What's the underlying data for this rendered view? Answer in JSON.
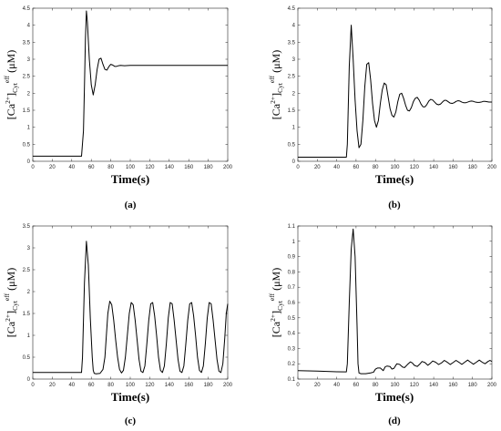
{
  "chart_data": [
    {
      "panel": "a",
      "type": "line",
      "caption": "(a)",
      "xlabel": "Time(s)",
      "ylabel": {
        "base": "[Ca",
        "sup": "2+",
        "bracket": "]",
        "sub": "Cyt",
        "sup2": "eff",
        "unit": "(μM)"
      },
      "xlim": [
        0,
        200
      ],
      "ylim": [
        0,
        4.5
      ],
      "xticks": [
        0,
        20,
        40,
        60,
        80,
        100,
        120,
        140,
        160,
        180,
        200
      ],
      "yticks": [
        0,
        0.5,
        1,
        1.5,
        2,
        2.5,
        3,
        3.5,
        4,
        4.5
      ],
      "x": [
        0,
        50,
        52,
        53,
        54,
        55,
        56,
        58,
        60,
        62,
        64,
        66,
        68,
        70,
        72,
        74,
        76,
        78,
        80,
        82,
        84,
        86,
        88,
        90,
        94,
        100,
        110,
        140,
        170,
        200
      ],
      "y": [
        0.15,
        0.15,
        0.9,
        2.2,
        3.6,
        4.42,
        4.1,
        3.0,
        2.25,
        1.95,
        2.25,
        2.7,
        3.0,
        3.03,
        2.85,
        2.7,
        2.68,
        2.78,
        2.85,
        2.83,
        2.79,
        2.79,
        2.81,
        2.82,
        2.81,
        2.82,
        2.82,
        2.82,
        2.82,
        2.82
      ]
    },
    {
      "panel": "b",
      "type": "line",
      "caption": "(b)",
      "xlabel": "Time(s)",
      "ylabel": {
        "base": "[Ca",
        "sup": "2+",
        "bracket": "]",
        "sub": "Cyt",
        "sup2": "eff",
        "unit": "(μM)"
      },
      "xlim": [
        0,
        200
      ],
      "ylim": [
        0,
        4.5
      ],
      "xticks": [
        0,
        20,
        40,
        60,
        80,
        100,
        120,
        140,
        160,
        180,
        200
      ],
      "yticks": [
        0,
        0.5,
        1,
        1.5,
        2,
        2.5,
        3,
        3.5,
        4,
        4.5
      ],
      "x": [
        0,
        50,
        51,
        53,
        55,
        57,
        59,
        61,
        63,
        65,
        67,
        69,
        71,
        73,
        75,
        77,
        79,
        81,
        83,
        85,
        87,
        89,
        91,
        93,
        95,
        97,
        99,
        101,
        103,
        105,
        107,
        109,
        111,
        113,
        115,
        117,
        119,
        121,
        123,
        125,
        127,
        129,
        131,
        133,
        135,
        137,
        139,
        141,
        143,
        145,
        147,
        149,
        151,
        153,
        155,
        157,
        159,
        161,
        163,
        165,
        167,
        169,
        171,
        173,
        175,
        177,
        179,
        181,
        183,
        185,
        187,
        189,
        191,
        193,
        195,
        197,
        200
      ],
      "y": [
        0.12,
        0.12,
        0.5,
        2.8,
        4.0,
        3.0,
        1.8,
        0.9,
        0.4,
        0.5,
        1.2,
        2.2,
        2.85,
        2.9,
        2.4,
        1.7,
        1.2,
        1.0,
        1.2,
        1.7,
        2.1,
        2.3,
        2.25,
        1.9,
        1.55,
        1.35,
        1.3,
        1.45,
        1.75,
        1.97,
        2.0,
        1.85,
        1.65,
        1.5,
        1.48,
        1.58,
        1.75,
        1.85,
        1.88,
        1.8,
        1.68,
        1.6,
        1.6,
        1.67,
        1.77,
        1.82,
        1.8,
        1.74,
        1.68,
        1.66,
        1.68,
        1.74,
        1.79,
        1.79,
        1.75,
        1.71,
        1.7,
        1.72,
        1.76,
        1.78,
        1.77,
        1.74,
        1.72,
        1.72,
        1.74,
        1.76,
        1.77,
        1.76,
        1.74,
        1.73,
        1.73,
        1.74,
        1.76,
        1.76,
        1.75,
        1.74,
        1.74
      ]
    },
    {
      "panel": "c",
      "type": "line",
      "caption": "(c)",
      "xlabel": "Time(s)",
      "ylabel": {
        "base": "[Ca",
        "sup": "2+",
        "bracket": "]",
        "sub": "Cyt",
        "sup2": "eff",
        "unit": "(μM)"
      },
      "xlim": [
        0,
        200
      ],
      "ylim": [
        0,
        3.5
      ],
      "xticks": [
        0,
        20,
        40,
        60,
        80,
        100,
        120,
        140,
        160,
        180,
        200
      ],
      "yticks": [
        0,
        0.5,
        1,
        1.5,
        2,
        2.5,
        3,
        3.5
      ],
      "x": [
        0,
        50,
        51,
        53,
        55,
        57,
        59,
        61,
        62,
        63,
        65,
        69,
        72,
        74,
        75.5,
        77,
        79,
        81,
        83,
        85,
        87,
        89,
        91,
        93,
        95,
        97,
        99,
        101,
        103,
        105,
        107,
        109,
        111,
        113,
        115,
        117,
        119,
        121,
        123,
        125,
        127,
        129,
        131,
        133,
        135,
        137,
        139,
        141,
        143,
        145,
        147,
        149,
        151,
        153,
        155,
        157,
        159,
        161,
        163,
        165,
        167,
        169,
        171,
        173,
        175,
        177,
        179,
        181,
        183,
        185,
        187,
        189,
        191,
        193,
        195,
        197,
        198.5,
        200
      ],
      "y": [
        0.15,
        0.15,
        0.5,
        2.2,
        3.15,
        2.6,
        1.4,
        0.5,
        0.2,
        0.13,
        0.12,
        0.13,
        0.22,
        0.5,
        1.0,
        1.5,
        1.78,
        1.7,
        1.35,
        0.9,
        0.5,
        0.22,
        0.14,
        0.2,
        0.5,
        1.0,
        1.5,
        1.75,
        1.7,
        1.35,
        0.9,
        0.45,
        0.18,
        0.15,
        0.3,
        0.8,
        1.35,
        1.72,
        1.75,
        1.45,
        1.0,
        0.5,
        0.2,
        0.15,
        0.3,
        0.8,
        1.4,
        1.75,
        1.72,
        1.35,
        0.9,
        0.45,
        0.18,
        0.15,
        0.3,
        0.8,
        1.35,
        1.72,
        1.75,
        1.45,
        1.0,
        0.5,
        0.2,
        0.15,
        0.3,
        0.8,
        1.4,
        1.75,
        1.72,
        1.35,
        0.9,
        0.45,
        0.18,
        0.15,
        0.35,
        0.95,
        1.5,
        1.72
      ]
    },
    {
      "panel": "d",
      "type": "line",
      "caption": "(d)",
      "xlabel": "Time(s)",
      "ylabel": {
        "base": "[Ca",
        "sup": "2+",
        "bracket": "]",
        "sub": "Cyt",
        "sup2": "eff",
        "unit": "(μM)"
      },
      "xlim": [
        0,
        200
      ],
      "ylim": [
        0.1,
        1.1
      ],
      "xticks": [
        0,
        20,
        40,
        60,
        80,
        100,
        120,
        140,
        160,
        180,
        200
      ],
      "yticks": [
        0.1,
        0.2,
        0.3,
        0.4,
        0.5,
        0.6,
        0.7,
        0.8,
        0.9,
        1,
        1.1
      ],
      "x": [
        0,
        20,
        40,
        50,
        51,
        53,
        55,
        57,
        59,
        61,
        62,
        63,
        65,
        70,
        75,
        78,
        80,
        82,
        85,
        88,
        90,
        92,
        95,
        97,
        99,
        102,
        105,
        108,
        110,
        113,
        116,
        118,
        120,
        123,
        126,
        128,
        131,
        134,
        136,
        139,
        142,
        145,
        148,
        151,
        154,
        157,
        160,
        163,
        166,
        169,
        172,
        175,
        178,
        181,
        184,
        187,
        190,
        193,
        196,
        198,
        200
      ],
      "y": [
        0.155,
        0.152,
        0.148,
        0.147,
        0.2,
        0.6,
        0.95,
        1.08,
        0.9,
        0.45,
        0.2,
        0.14,
        0.135,
        0.135,
        0.14,
        0.145,
        0.165,
        0.172,
        0.172,
        0.155,
        0.18,
        0.185,
        0.182,
        0.165,
        0.17,
        0.2,
        0.195,
        0.178,
        0.175,
        0.195,
        0.212,
        0.205,
        0.19,
        0.182,
        0.2,
        0.215,
        0.208,
        0.19,
        0.2,
        0.218,
        0.21,
        0.195,
        0.205,
        0.222,
        0.21,
        0.195,
        0.208,
        0.222,
        0.21,
        0.196,
        0.21,
        0.224,
        0.21,
        0.197,
        0.21,
        0.224,
        0.21,
        0.2,
        0.215,
        0.222,
        0.215
      ]
    }
  ]
}
